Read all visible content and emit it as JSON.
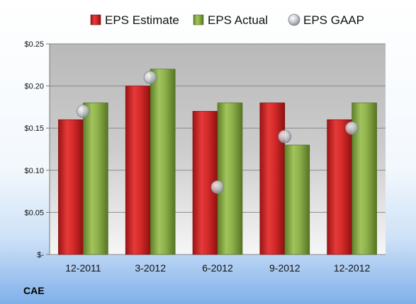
{
  "chart_data": {
    "type": "bar",
    "categories": [
      "12-2011",
      "3-2012",
      "6-2012",
      "9-2012",
      "12-2012"
    ],
    "series": [
      {
        "name": "EPS Estimate",
        "type": "bar",
        "values": [
          0.16,
          0.2,
          0.17,
          0.18,
          0.16
        ],
        "color": "#d42a2a"
      },
      {
        "name": "EPS Actual",
        "type": "bar",
        "values": [
          0.18,
          0.22,
          0.18,
          0.13,
          0.18
        ],
        "color": "#8db04a"
      },
      {
        "name": "EPS GAAP",
        "type": "scatter",
        "values": [
          0.17,
          0.21,
          0.08,
          0.14,
          0.15
        ],
        "color": "#b8bcc4"
      }
    ],
    "ylim": [
      0,
      0.25
    ],
    "yticks": [
      0,
      0.05,
      0.1,
      0.15,
      0.2,
      0.25
    ],
    "ytick_labels": [
      "$-",
      "$0.05",
      "$0.10",
      "$0.15",
      "$0.20",
      "$0.25"
    ],
    "grid": true,
    "legend_position": "top"
  },
  "ticker": "CAE"
}
